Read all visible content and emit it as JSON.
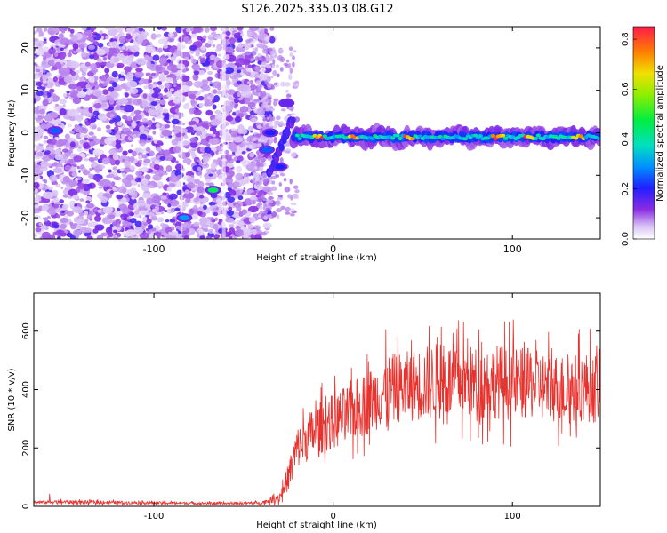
{
  "title": "S126.2025.335.03.08.G12",
  "colors": {
    "snr_line": "#e8322e",
    "spectrum_low": "#d8c4f2",
    "spectrum_mid": "#6a12e0",
    "axis": "#000000"
  },
  "chart_data": [
    {
      "type": "heatmap",
      "title": "",
      "xlabel": "Height of straight line (km)",
      "ylabel": "Frequency (Hz)",
      "xlim": [
        -167,
        149
      ],
      "ylim": [
        -25,
        25
      ],
      "xticks": [
        -100,
        0,
        100
      ],
      "xtick_labels": [
        "-100",
        "0",
        "100"
      ],
      "yticks": [
        -20,
        -10,
        0,
        10,
        20
      ],
      "ytick_labels": [
        "-20",
        "-10",
        "0",
        "10",
        "20"
      ],
      "colorbar": {
        "label": "Normalized spectral amplitude",
        "range": [
          0,
          0.85
        ],
        "ticks": [
          0.0,
          0.2,
          0.4,
          0.6,
          0.8
        ],
        "tick_labels": [
          "0.0",
          "0.2",
          "0.4",
          "0.6",
          "0.8"
        ]
      },
      "ridge": {
        "x_start": -22,
        "x_end": 149,
        "freq_center": -1,
        "peak_positions_km": [
          -8,
          12,
          42,
          92,
          110,
          137
        ]
      },
      "noise_region": {
        "x_start": -167,
        "x_end": -42
      },
      "transition_blobs": [
        {
          "x": -67,
          "y": -13.5,
          "v": 0.45
        },
        {
          "x": -83,
          "y": -20,
          "v": 0.3
        },
        {
          "x": -155,
          "y": 0.5,
          "v": 0.25
        },
        {
          "x": -37,
          "y": -4,
          "v": 0.25
        },
        {
          "x": -30,
          "y": -8,
          "v": 0.2
        },
        {
          "x": -26,
          "y": 7,
          "v": 0.15
        },
        {
          "x": -35,
          "y": 0,
          "v": 0.2
        }
      ]
    },
    {
      "type": "line",
      "title": "",
      "xlabel": "Height of straight line (km)",
      "ylabel": "SNR (10 * v/v)",
      "xlim": [
        -167,
        149
      ],
      "ylim": [
        0,
        730
      ],
      "xticks": [
        -100,
        0,
        100
      ],
      "xtick_labels": [
        "-100",
        "0",
        "100"
      ],
      "yticks": [
        0,
        200,
        400,
        600
      ],
      "ytick_labels": [
        "0",
        "200",
        "400",
        "600"
      ],
      "series": [
        {
          "name": "SNR",
          "x": [
            -167,
            -150,
            -100,
            -60,
            -40,
            -30,
            -25,
            -20,
            -10,
            0,
            10,
            20,
            30,
            40,
            50,
            60,
            70,
            80,
            90,
            100,
            110,
            120,
            130,
            140,
            149
          ],
          "mean": [
            14,
            15,
            12,
            10,
            12,
            30,
            100,
            200,
            260,
            290,
            320,
            360,
            400,
            410,
            420,
            430,
            430,
            420,
            430,
            420,
            420,
            410,
            400,
            410,
            400
          ],
          "spread": [
            6,
            8,
            6,
            5,
            6,
            20,
            60,
            90,
            110,
            120,
            130,
            140,
            150,
            150,
            160,
            170,
            160,
            160,
            160,
            160,
            150,
            150,
            150,
            150,
            150
          ]
        }
      ]
    }
  ]
}
